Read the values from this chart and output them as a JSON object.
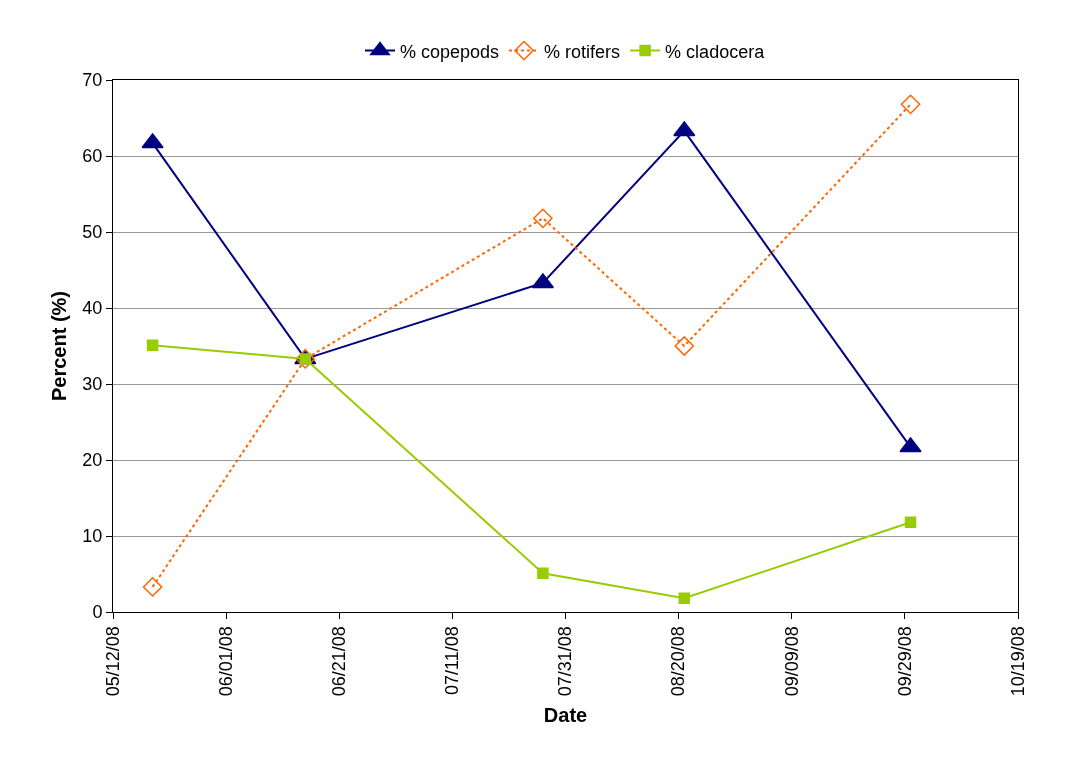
{
  "chart_data": {
    "type": "line",
    "xlabel": "Date",
    "ylabel": "Percent (%)",
    "series": [
      {
        "name": "% copepods",
        "color": "#000080",
        "marker": "triangle",
        "line_style": "solid",
        "x": [
          "2008-05-19",
          "2008-06-15",
          "2008-07-27",
          "2008-08-21",
          "2008-09-30"
        ],
        "values": [
          61.7,
          33.3,
          43.3,
          63.3,
          21.7
        ]
      },
      {
        "name": "% rotifers",
        "color": "#ff6600",
        "marker": "diamond",
        "line_style": "dotted",
        "x": [
          "2008-05-19",
          "2008-06-15",
          "2008-07-27",
          "2008-08-21",
          "2008-09-30"
        ],
        "values": [
          3.3,
          33.3,
          51.8,
          35.0,
          66.8
        ]
      },
      {
        "name": "% cladocera",
        "color": "#99cc00",
        "marker": "square",
        "line_style": "solid",
        "x": [
          "2008-05-19",
          "2008-06-15",
          "2008-07-27",
          "2008-08-21",
          "2008-09-30"
        ],
        "values": [
          35.1,
          33.3,
          5.1,
          1.8,
          11.8
        ]
      }
    ],
    "xlim": [
      "2008-05-12",
      "2008-10-19"
    ],
    "xticks": [
      {
        "value": "2008-05-12",
        "label": "05/12/08"
      },
      {
        "value": "2008-06-01",
        "label": "06/01/08"
      },
      {
        "value": "2008-06-21",
        "label": "06/21/08"
      },
      {
        "value": "2008-07-11",
        "label": "07/11/08"
      },
      {
        "value": "2008-07-31",
        "label": "07/31/08"
      },
      {
        "value": "2008-08-20",
        "label": "08/20/08"
      },
      {
        "value": "2008-09-09",
        "label": "09/09/08"
      },
      {
        "value": "2008-09-29",
        "label": "09/29/08"
      },
      {
        "value": "2008-10-19",
        "label": "10/19/08"
      }
    ],
    "ylim": [
      0,
      70
    ],
    "yticks": [
      0,
      10,
      20,
      30,
      40,
      50,
      60,
      70
    ],
    "grid": "y",
    "legend": "top"
  }
}
